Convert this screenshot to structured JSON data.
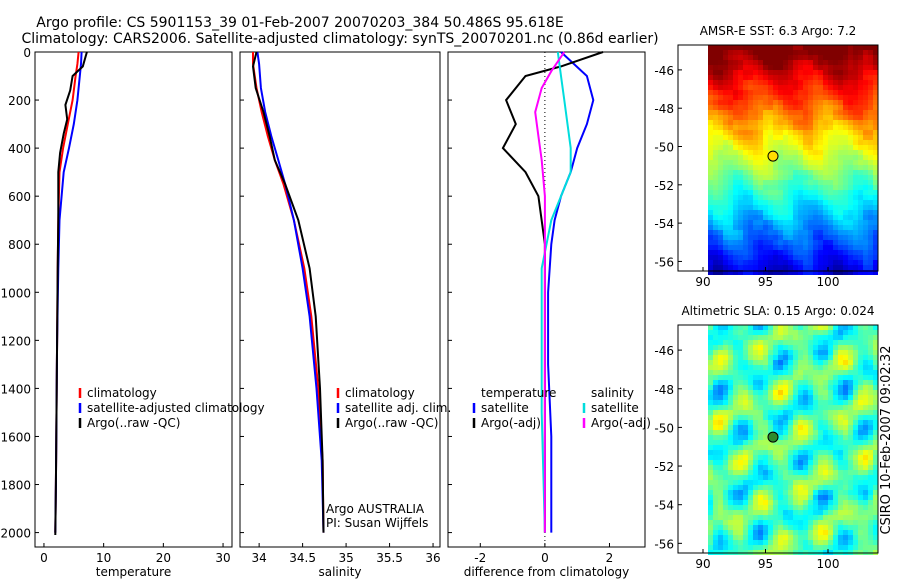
{
  "header": {
    "line1": "Argo profile: CS 5901153_39 01-Feb-2007 20070203_384 50.486S 95.618E",
    "line2": "Climatology: CARS2006. Satellite-adjusted climatology: synTS_20070201.nc (0.86d earlier)"
  },
  "colors": {
    "climatology": "#ff0000",
    "satellite": "#0000ff",
    "argo": "#000000",
    "sat_salinity": "#00dddd",
    "argo_salinity": "#ff00ff"
  },
  "depth_ticks": [
    "0",
    "200",
    "400",
    "600",
    "800",
    "1000",
    "1200",
    "1400",
    "1600",
    "1800",
    "2000"
  ],
  "chart_data": [
    {
      "type": "line",
      "xlabel": "temperature",
      "ylabel": "",
      "xlim": [
        -1.5,
        31.5
      ],
      "ylim": [
        2060,
        0
      ],
      "xticks": [
        "0",
        "10",
        "20",
        "30"
      ],
      "legend": [
        "climatology",
        "satellite-adjusted climatology",
        "Argo(..raw -QC)"
      ],
      "legend_position": "lower-right",
      "series": [
        {
          "name": "climatology",
          "color": "#ff0000",
          "x": [
            5.8,
            5.6,
            5.3,
            4.8,
            4.0,
            3.2,
            2.6,
            2.4,
            2.3,
            2.2,
            2.1,
            2.0,
            1.9
          ],
          "y": [
            0,
            50,
            100,
            200,
            300,
            400,
            500,
            700,
            900,
            1200,
            1500,
            1800,
            2000
          ]
        },
        {
          "name": "satellite-adjusted climatology",
          "color": "#0000ff",
          "x": [
            6.3,
            6.2,
            6.0,
            5.6,
            5.0,
            4.2,
            3.3,
            2.6,
            2.4,
            2.2,
            2.1,
            2.0,
            1.9
          ],
          "y": [
            0,
            50,
            100,
            200,
            300,
            400,
            500,
            700,
            900,
            1200,
            1500,
            1800,
            2000
          ]
        },
        {
          "name": "Argo(..raw -QC)",
          "color": "#000000",
          "x": [
            7.2,
            6.5,
            4.8,
            4.4,
            3.6,
            3.9,
            3.3,
            2.7,
            2.4,
            2.4,
            2.3,
            2.2,
            2.1,
            2.0,
            1.9
          ],
          "y": [
            0,
            60,
            100,
            160,
            220,
            280,
            340,
            420,
            500,
            700,
            900,
            1200,
            1500,
            1800,
            2010
          ]
        }
      ]
    },
    {
      "type": "line",
      "xlabel": "salinity",
      "ylabel": "",
      "xlim": [
        33.78,
        36.08
      ],
      "ylim": [
        2060,
        0
      ],
      "xticks": [
        "34",
        "34.5",
        "35",
        "35.5",
        "36"
      ],
      "legend": [
        "climatology",
        "satellite adj. clim.",
        "Argo(..raw -QC)"
      ],
      "legend_position": "lower-right",
      "annotation": [
        "Argo AUSTRALIA",
        "PI: Susan Wijffels"
      ],
      "series": [
        {
          "name": "climatology",
          "color": "#ff0000",
          "x": [
            33.93,
            33.93,
            33.97,
            34.03,
            34.1,
            34.18,
            34.28,
            34.4,
            34.52,
            34.6,
            34.68,
            34.73,
            34.74
          ],
          "y": [
            0,
            50,
            150,
            250,
            350,
            450,
            550,
            700,
            900,
            1100,
            1400,
            1700,
            2000
          ]
        },
        {
          "name": "satellite adj. clim.",
          "color": "#0000ff",
          "x": [
            33.98,
            34.0,
            34.02,
            34.07,
            34.14,
            34.22,
            34.3,
            34.4,
            34.5,
            34.58,
            34.66,
            34.72,
            34.74
          ],
          "y": [
            0,
            50,
            150,
            250,
            350,
            450,
            550,
            700,
            900,
            1100,
            1400,
            1700,
            2000
          ]
        },
        {
          "name": "Argo(..raw -QC)",
          "color": "#000000",
          "x": [
            33.97,
            33.93,
            33.96,
            34.05,
            34.12,
            34.18,
            34.3,
            34.45,
            34.58,
            34.65,
            34.7,
            34.73,
            34.74
          ],
          "y": [
            0,
            60,
            150,
            250,
            350,
            450,
            550,
            700,
            900,
            1100,
            1400,
            1700,
            2000
          ]
        }
      ]
    },
    {
      "type": "line",
      "xlabel": "difference from climatology",
      "ylabel": "",
      "xlim": [
        -3,
        3.1
      ],
      "ylim": [
        2060,
        0
      ],
      "xticks": [
        "-2",
        "0",
        "2"
      ],
      "legend_columns": [
        {
          "header": "temperature",
          "entries": [
            "satellite",
            "Argo(-adj)"
          ]
        },
        {
          "header": "salinity",
          "entries": [
            "satellite",
            "Argo(-adj)"
          ]
        }
      ],
      "legend_position": "lower",
      "series": [
        {
          "name": "satellite",
          "group": "temperature",
          "color": "#0000ff",
          "x": [
            0.5,
            1.3,
            1.5,
            1.3,
            1.0,
            0.8,
            0.5,
            0.3,
            0.2,
            0.1,
            0.1,
            0.2,
            0.2
          ],
          "y": [
            0,
            100,
            200,
            300,
            400,
            500,
            600,
            700,
            800,
            1000,
            1300,
            1600,
            2000
          ]
        },
        {
          "name": "Argo(-adj)",
          "group": "temperature",
          "color": "#000000",
          "x": [
            1.8,
            0.5,
            -0.6,
            -1.2,
            -0.9,
            -1.3,
            -0.6,
            -0.2,
            0.0,
            0.0,
            0.0,
            0.0
          ],
          "y": [
            0,
            60,
            100,
            200,
            300,
            400,
            500,
            600,
            800,
            1000,
            1500,
            2000
          ]
        },
        {
          "name": "satellite",
          "group": "salinity",
          "color": "#00dddd",
          "x": [
            0.4,
            0.5,
            0.6,
            0.7,
            0.8,
            0.8,
            0.5,
            0.2,
            -0.1,
            -0.1,
            -0.1,
            0.0
          ],
          "y": [
            0,
            100,
            200,
            300,
            400,
            500,
            600,
            700,
            900,
            1200,
            1500,
            2000
          ]
        },
        {
          "name": "Argo(-adj)",
          "group": "salinity",
          "color": "#ff00ff",
          "x": [
            0.6,
            0.2,
            -0.1,
            -0.3,
            -0.2,
            -0.1,
            0.0,
            0.0,
            0.0,
            0.0
          ],
          "y": [
            0,
            80,
            150,
            250,
            350,
            450,
            600,
            800,
            1200,
            2000
          ]
        }
      ]
    },
    {
      "type": "heatmap",
      "title": "AMSR-E SST: 6.3  Argo: 7.2",
      "xlim": [
        88,
        104
      ],
      "ylim": [
        -56.5,
        -44.7
      ],
      "xticks": [
        "90",
        "95",
        "100"
      ],
      "yticks": [
        "-46",
        "-48",
        "-50",
        "-52",
        "-54",
        "-56"
      ],
      "colormap": "jet",
      "marker": {
        "lon": 95.6,
        "lat": -50.5
      }
    },
    {
      "type": "heatmap",
      "title": "Altimetric SLA: 0.15  Argo: 0.024",
      "xlim": [
        88,
        104
      ],
      "ylim": [
        -56.5,
        -44.7
      ],
      "xticks": [
        "90",
        "95",
        "100"
      ],
      "yticks": [
        "-46",
        "-48",
        "-50",
        "-52",
        "-54",
        "-56"
      ],
      "colormap": "jet",
      "marker": {
        "lon": 95.6,
        "lat": -50.5
      }
    }
  ],
  "footer_credit": "CSIRO 10-Feb-2007 09:02:32"
}
